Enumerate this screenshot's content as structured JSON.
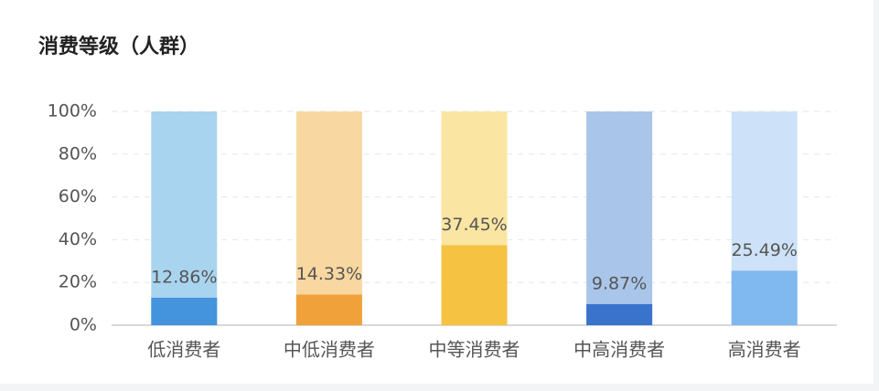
{
  "chart_data": {
    "type": "bar",
    "title": "消费等级（人群）",
    "categories": [
      "低消费者",
      "中低消费者",
      "中等消费者",
      "中高消费者",
      "高消费者"
    ],
    "values": [
      12.86,
      14.33,
      37.45,
      9.87,
      25.49
    ],
    "value_labels": [
      "12.86%",
      "14.33%",
      "37.45%",
      "9.87%",
      "25.49%"
    ],
    "colors": [
      "#4394dc",
      "#f0a13a",
      "#f5c242",
      "#3a73cc",
      "#80b8f0"
    ],
    "track_colors": [
      "#a8d4f0",
      "#f8d8a0",
      "#fae5a2",
      "#a9c6ea",
      "#cde2f8"
    ],
    "ylim": [
      0,
      100
    ],
    "yticks": [
      {
        "value": 0,
        "label": "0%"
      },
      {
        "value": 20,
        "label": "20%"
      },
      {
        "value": 40,
        "label": "40%"
      },
      {
        "value": 60,
        "label": "60%"
      },
      {
        "value": 80,
        "label": "80%"
      },
      {
        "value": 100,
        "label": "100%"
      }
    ],
    "grid": true
  }
}
